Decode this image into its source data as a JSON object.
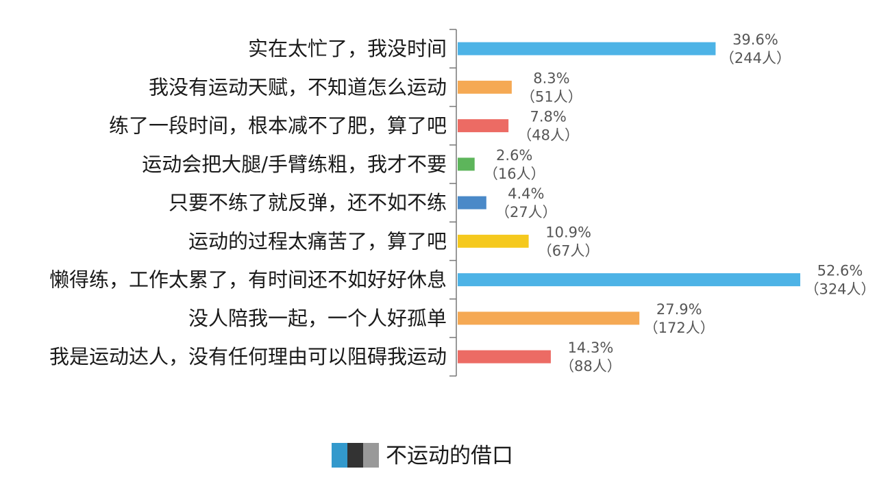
{
  "chart_data": {
    "type": "bar",
    "orientation": "horizontal",
    "categories": [
      "实在太忙了，我没时间",
      "我没有运动天赋，不知道怎么运动",
      "练了一段时间，根本减不了肥，算了吧",
      "运动会把大腿/手臂练粗，我才不要",
      "只要不练了就反弹，还不如不练",
      "运动的过程太痛苦了，算了吧",
      "懒得练，工作太累了，有时间还不如好好休息",
      "没人陪我一起，一个人好孤单",
      "我是运动达人，没有任何理由可以阻碍我运动"
    ],
    "values": [
      39.6,
      8.3,
      7.8,
      2.6,
      4.4,
      10.9,
      52.6,
      27.9,
      14.3
    ],
    "value_labels": [
      "39.6%",
      "8.3%",
      "7.8%",
      "2.6%",
      "4.4%",
      "10.9%",
      "52.6%",
      "27.9%",
      "14.3%"
    ],
    "count_labels": [
      "（244人）",
      "（51人）",
      "（48人）",
      "（16人）",
      "（27人）",
      "（67人）",
      "（324人）",
      "（172人）",
      "（88人）"
    ],
    "bar_colors": [
      "#4db3e6",
      "#f5a954",
      "#ec6b64",
      "#5db55b",
      "#4a89c8",
      "#f5c91e",
      "#4db3e6",
      "#f5a954",
      "#ec6b64"
    ],
    "xlim": [
      0,
      52.6
    ],
    "grid": false,
    "legend": {
      "position": "bottom-center",
      "label": "不运动的借口",
      "swatch_colors": [
        "#3399cc",
        "#333333",
        "#999999"
      ]
    }
  }
}
